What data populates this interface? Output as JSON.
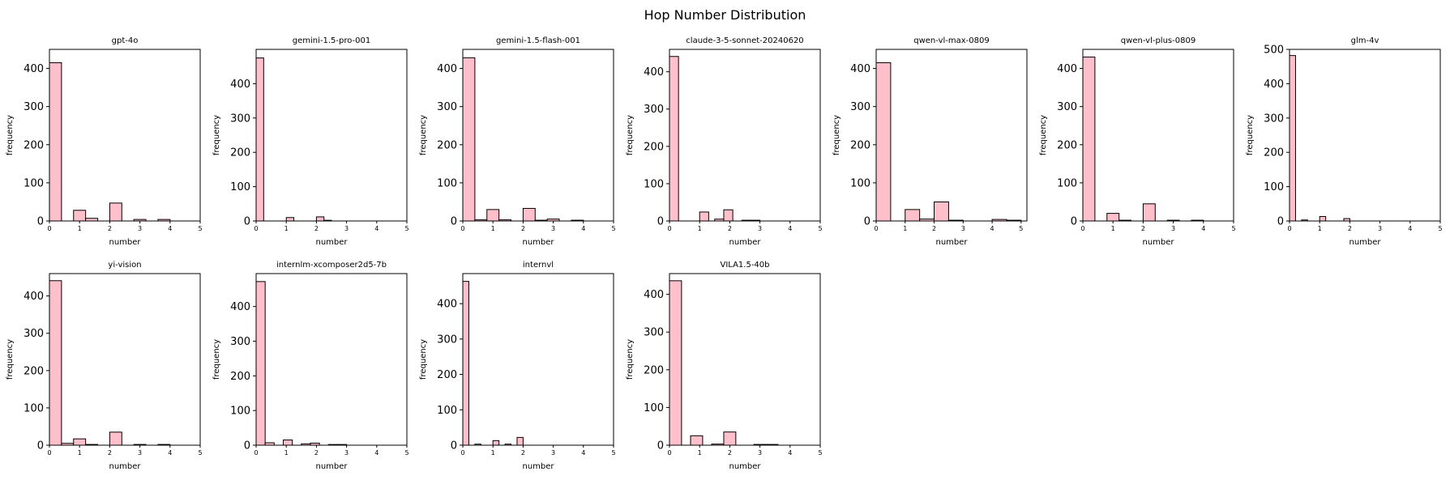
{
  "figure": {
    "title": "Hop Number Distribution"
  },
  "chart_data": [
    {
      "type": "bar",
      "title": "gpt-4o",
      "xlabel": "number",
      "ylabel": "frequency",
      "xlim": [
        0,
        5
      ],
      "ylim": [
        0,
        450
      ],
      "xticks": [
        0,
        1,
        2,
        3,
        4,
        5
      ],
      "yticks": [
        0,
        100,
        200,
        300,
        400
      ],
      "bins": [
        [
          0,
          0.4,
          415
        ],
        [
          0.8,
          1.2,
          28
        ],
        [
          1.2,
          1.6,
          7
        ],
        [
          2.0,
          2.4,
          47
        ],
        [
          2.8,
          3.2,
          4
        ],
        [
          3.6,
          4.0,
          4
        ]
      ]
    },
    {
      "type": "bar",
      "title": "gemini-1.5-pro-001",
      "xlabel": "number",
      "ylabel": "frequency",
      "xlim": [
        0,
        5
      ],
      "ylim": [
        0,
        500
      ],
      "xticks": [
        0,
        1,
        2,
        3,
        4,
        5
      ],
      "yticks": [
        0,
        100,
        200,
        300,
        400
      ],
      "bins": [
        [
          0,
          0.25,
          475
        ],
        [
          1.0,
          1.25,
          10
        ],
        [
          2.0,
          2.25,
          12
        ],
        [
          2.25,
          2.5,
          2
        ]
      ]
    },
    {
      "type": "bar",
      "title": "gemini-1.5-flash-001",
      "xlabel": "number",
      "ylabel": "frequency",
      "xlim": [
        0,
        5
      ],
      "ylim": [
        0,
        450
      ],
      "xticks": [
        0,
        1,
        2,
        3,
        4,
        5
      ],
      "yticks": [
        0,
        100,
        200,
        300,
        400
      ],
      "bins": [
        [
          0,
          0.4,
          428
        ],
        [
          0.4,
          0.8,
          3
        ],
        [
          0.8,
          1.2,
          30
        ],
        [
          1.2,
          1.6,
          3
        ],
        [
          2.0,
          2.4,
          33
        ],
        [
          2.4,
          2.8,
          2
        ],
        [
          2.8,
          3.2,
          5
        ],
        [
          3.6,
          4.0,
          2
        ]
      ]
    },
    {
      "type": "bar",
      "title": "claude-3-5-sonnet-20240620",
      "xlabel": "number",
      "ylabel": "frequency",
      "xlim": [
        0,
        5
      ],
      "ylim": [
        0,
        460
      ],
      "xticks": [
        0,
        1,
        2,
        3,
        4,
        5
      ],
      "yticks": [
        0,
        100,
        200,
        300,
        400
      ],
      "bins": [
        [
          0,
          0.3,
          441
        ],
        [
          1.0,
          1.3,
          24
        ],
        [
          1.5,
          1.8,
          5
        ],
        [
          1.8,
          2.1,
          30
        ],
        [
          2.4,
          2.7,
          2
        ],
        [
          2.7,
          3.0,
          2
        ]
      ]
    },
    {
      "type": "bar",
      "title": "qwen-vl-max-0809",
      "xlabel": "number",
      "ylabel": "frequency",
      "xlim": [
        0,
        5.2
      ],
      "ylim": [
        0,
        450
      ],
      "xticks": [
        0,
        1,
        2,
        3,
        4,
        5
      ],
      "yticks": [
        0,
        100,
        200,
        300,
        400
      ],
      "bins": [
        [
          0,
          0.5,
          415
        ],
        [
          1.0,
          1.5,
          30
        ],
        [
          1.5,
          2.0,
          5
        ],
        [
          2.0,
          2.5,
          50
        ],
        [
          2.5,
          3.0,
          2
        ],
        [
          4.0,
          4.5,
          4
        ],
        [
          4.5,
          5.0,
          2
        ]
      ]
    },
    {
      "type": "bar",
      "title": "qwen-vl-plus-0809",
      "xlabel": "number",
      "ylabel": "frequency",
      "xlim": [
        0,
        5
      ],
      "ylim": [
        0,
        450
      ],
      "xticks": [
        0,
        1,
        2,
        3,
        4,
        5
      ],
      "yticks": [
        0,
        100,
        200,
        300,
        400
      ],
      "bins": [
        [
          0,
          0.4,
          430
        ],
        [
          0.8,
          1.2,
          20
        ],
        [
          1.2,
          1.6,
          2
        ],
        [
          2.0,
          2.4,
          45
        ],
        [
          2.8,
          3.2,
          2
        ],
        [
          3.6,
          4.0,
          2
        ]
      ]
    },
    {
      "type": "bar",
      "title": "glm-4v",
      "xlabel": "number",
      "ylabel": "frequency",
      "xlim": [
        0,
        5
      ],
      "ylim": [
        0,
        500
      ],
      "xticks": [
        0,
        1,
        2,
        3,
        4,
        5
      ],
      "yticks": [
        0,
        100,
        200,
        300,
        400,
        500
      ],
      "bins": [
        [
          0,
          0.2,
          482
        ],
        [
          0.4,
          0.6,
          3
        ],
        [
          1.0,
          1.2,
          13
        ],
        [
          1.8,
          2.0,
          7
        ]
      ]
    },
    {
      "type": "bar",
      "title": "yi-vision",
      "xlabel": "number",
      "ylabel": "frequency",
      "xlim": [
        0,
        5
      ],
      "ylim": [
        0,
        460
      ],
      "xticks": [
        0,
        1,
        2,
        3,
        4,
        5
      ],
      "yticks": [
        0,
        100,
        200,
        300,
        400
      ],
      "bins": [
        [
          0,
          0.4,
          441
        ],
        [
          0.4,
          0.8,
          5
        ],
        [
          0.8,
          1.2,
          17
        ],
        [
          1.2,
          1.6,
          2
        ],
        [
          2.0,
          2.4,
          35
        ],
        [
          2.8,
          3.2,
          2
        ],
        [
          3.6,
          4.0,
          2
        ]
      ]
    },
    {
      "type": "bar",
      "title": "internlm-xcomposer2d5-7b",
      "xlabel": "number",
      "ylabel": "frequency",
      "xlim": [
        0,
        5
      ],
      "ylim": [
        0,
        495
      ],
      "xticks": [
        0,
        1,
        2,
        3,
        4,
        5
      ],
      "yticks": [
        0,
        100,
        200,
        300,
        400
      ],
      "bins": [
        [
          0,
          0.3,
          472
        ],
        [
          0.3,
          0.6,
          7
        ],
        [
          0.9,
          1.2,
          15
        ],
        [
          1.5,
          1.8,
          4
        ],
        [
          1.8,
          2.1,
          6
        ],
        [
          2.4,
          2.7,
          2
        ],
        [
          2.7,
          3.0,
          2
        ]
      ]
    },
    {
      "type": "bar",
      "title": "internvl",
      "xlabel": "number",
      "ylabel": "frequency",
      "xlim": [
        0,
        5
      ],
      "ylim": [
        0,
        485
      ],
      "xticks": [
        0,
        1,
        2,
        3,
        4,
        5
      ],
      "yticks": [
        0,
        100,
        200,
        300,
        400
      ],
      "bins": [
        [
          0,
          0.2,
          463
        ],
        [
          0.4,
          0.6,
          3
        ],
        [
          1.0,
          1.2,
          13
        ],
        [
          1.4,
          1.6,
          3
        ],
        [
          1.8,
          2.0,
          22
        ]
      ]
    },
    {
      "type": "bar",
      "title": "VILA1.5-40b",
      "xlabel": "number",
      "ylabel": "frequency",
      "xlim": [
        0,
        5
      ],
      "ylim": [
        0,
        455
      ],
      "xticks": [
        0,
        1,
        2,
        3,
        4,
        5
      ],
      "yticks": [
        0,
        100,
        200,
        300,
        400
      ],
      "bins": [
        [
          0,
          0.4,
          436
        ],
        [
          0.7,
          1.1,
          25
        ],
        [
          1.4,
          1.8,
          3
        ],
        [
          1.8,
          2.2,
          35
        ],
        [
          2.8,
          3.2,
          2
        ],
        [
          3.2,
          3.6,
          2
        ]
      ]
    }
  ]
}
